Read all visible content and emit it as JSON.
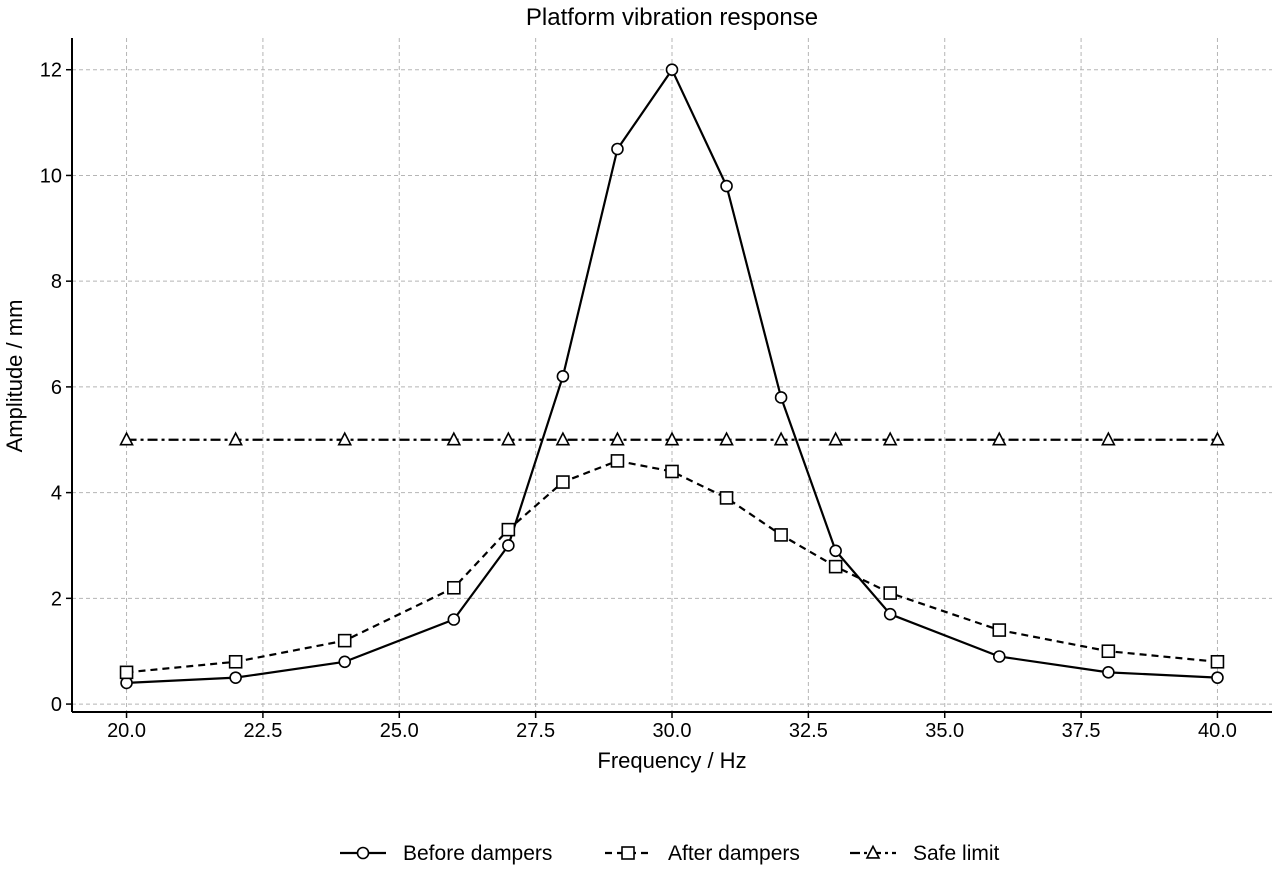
{
  "chart_data": {
    "type": "line",
    "title": "Platform vibration response",
    "xlabel": "Frequency / Hz",
    "ylabel": "Amplitude / mm",
    "xlim": [
      19,
      41
    ],
    "ylim": [
      -0.15,
      12.6
    ],
    "xticks": [
      20.0,
      22.5,
      25.0,
      27.5,
      30.0,
      32.5,
      35.0,
      37.5,
      40.0
    ],
    "xtick_labels": [
      "20.0",
      "22.5",
      "25.0",
      "27.5",
      "30.0",
      "32.5",
      "35.0",
      "37.5",
      "40.0"
    ],
    "yticks": [
      0,
      2,
      4,
      6,
      8,
      10,
      12
    ],
    "ytick_labels": [
      "0",
      "2",
      "4",
      "6",
      "8",
      "10",
      "12"
    ],
    "grid": true,
    "legend_position": "bottom-center",
    "series": [
      {
        "name": "Before dampers",
        "marker": "circle",
        "line_style": "solid",
        "color": "#000000",
        "x": [
          20,
          22,
          24,
          26,
          27,
          28,
          29,
          30,
          31,
          32,
          33,
          34,
          36,
          38,
          40
        ],
        "y": [
          0.4,
          0.5,
          0.8,
          1.6,
          3.0,
          6.2,
          10.5,
          12.0,
          9.8,
          5.8,
          2.9,
          1.7,
          0.9,
          0.6,
          0.5
        ]
      },
      {
        "name": "After dampers",
        "marker": "square",
        "line_style": "dashed",
        "color": "#000000",
        "x": [
          20,
          22,
          24,
          26,
          27,
          28,
          29,
          30,
          31,
          32,
          33,
          34,
          36,
          38,
          40
        ],
        "y": [
          0.6,
          0.8,
          1.2,
          2.2,
          3.3,
          4.2,
          4.6,
          4.4,
          3.9,
          3.2,
          2.6,
          2.1,
          1.4,
          1.0,
          0.8
        ]
      },
      {
        "name": "Safe limit",
        "marker": "triangle",
        "line_style": "dashdot",
        "color": "#000000",
        "x": [
          20,
          22,
          24,
          26,
          27,
          28,
          29,
          30,
          31,
          32,
          33,
          34,
          36,
          38,
          40
        ],
        "y": [
          5,
          5,
          5,
          5,
          5,
          5,
          5,
          5,
          5,
          5,
          5,
          5,
          5,
          5,
          5
        ]
      }
    ]
  }
}
